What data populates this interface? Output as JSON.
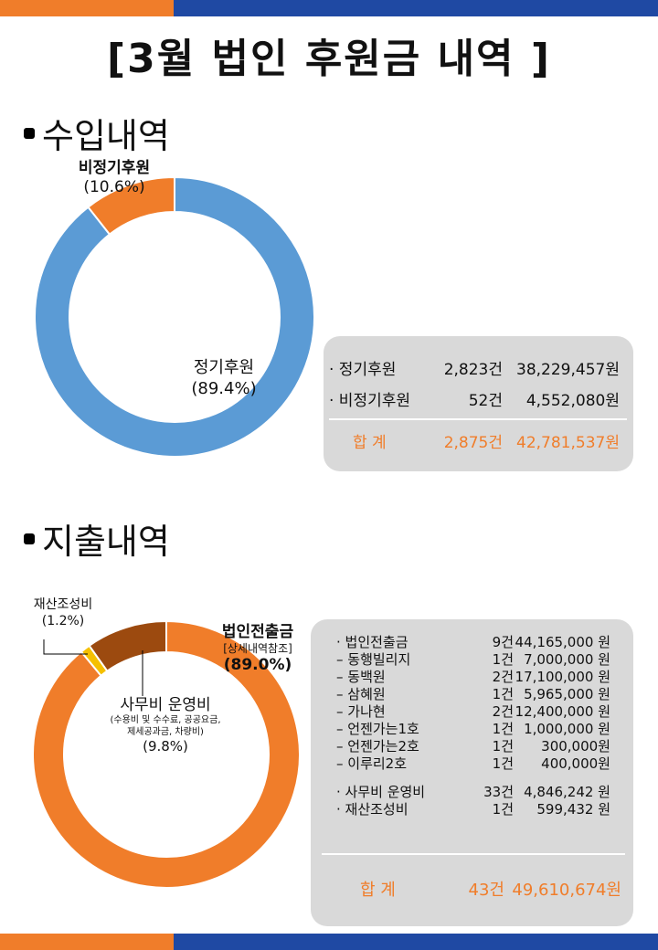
{
  "page_title": "[3월 법인 후원금 내역 ]",
  "income": {
    "section_title": "수입내역",
    "chart_data": {
      "type": "pie",
      "donut": true,
      "slices": [
        {
          "label": "정기후원",
          "percent_label": "(89.4%)",
          "value": 89.4,
          "color": "#5b9bd5"
        },
        {
          "label": "비정기후원",
          "percent_label": "(10.6%)",
          "value": 10.6,
          "color": "#f07d2a"
        }
      ]
    },
    "table": {
      "rows": [
        {
          "name": "· 정기후원",
          "count": "2,823건",
          "amount": "38,229,457원"
        },
        {
          "name": "· 비정기후원",
          "count": "52건",
          "amount": "4,552,080원"
        }
      ],
      "total": {
        "name": "합   계",
        "count": "2,875건",
        "amount": "42,781,537원"
      }
    }
  },
  "expense": {
    "section_title": "지출내역",
    "chart_data": {
      "type": "pie",
      "donut": true,
      "slices": [
        {
          "label": "법인전출금",
          "sublabel": "[상세내역참조]",
          "percent_label": "(89.0%)",
          "value": 89.0,
          "color": "#f07d2a"
        },
        {
          "label": "재산조성비",
          "percent_label": "(1.2%)",
          "value": 1.2,
          "color": "#f5c000"
        },
        {
          "label": "사무비 운영비",
          "sublabel": "(수용비 및 수수료, 공공요금,",
          "sublabel2": "제세공과금, 차량비)",
          "percent_label": "(9.8%)",
          "value": 9.8,
          "color": "#9c4a0f"
        }
      ]
    },
    "table": {
      "rows": [
        {
          "name": "· 법인전출금",
          "count": "9건",
          "amount": "44,165,000 원"
        },
        {
          "name": "–     동행빌리지",
          "count": "1건",
          "amount": "7,000,000 원"
        },
        {
          "name": "–     동백원",
          "count": "2건",
          "amount": "17,100,000 원"
        },
        {
          "name": "–     삼혜원",
          "count": "1건",
          "amount": "5,965,000 원"
        },
        {
          "name": "–     가나현",
          "count": "2건",
          "amount": "12,400,000 원"
        },
        {
          "name": "–     언젠가는1호",
          "count": "1건",
          "amount": "1,000,000 원"
        },
        {
          "name": "–     언젠가는2호",
          "count": "1건",
          "amount": "300,000원"
        },
        {
          "name": "–     이루리2호",
          "count": "1건",
          "amount": "400,000원"
        },
        {
          "name": "· 사무비 운영비",
          "count": "33건",
          "amount": "4,846,242 원"
        },
        {
          "name": " · 재산조성비",
          "count": "1건",
          "amount": "599,432 원"
        }
      ],
      "total": {
        "name": "합   계",
        "count": "43건",
        "amount": "49,610,674원"
      }
    }
  }
}
